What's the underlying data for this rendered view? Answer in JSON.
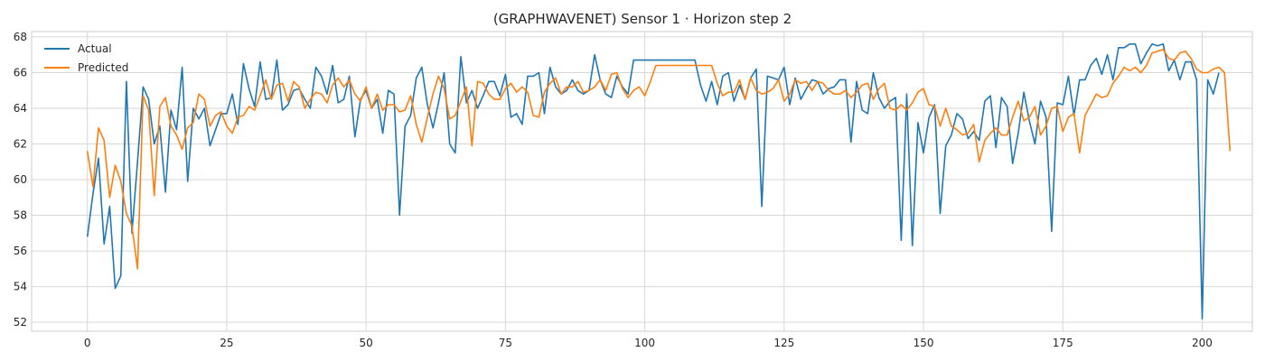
{
  "chart_data": {
    "type": "line",
    "title": "(GRAPHWAVENET) Sensor 1 · Horizon step 2",
    "xlabel": "",
    "ylabel": "",
    "xlim": [
      -10,
      209
    ],
    "ylim": [
      51.5,
      68.3
    ],
    "x_ticks": [
      0,
      25,
      50,
      75,
      100,
      125,
      150,
      175,
      200
    ],
    "y_ticks": [
      52,
      54,
      56,
      58,
      60,
      62,
      64,
      66,
      68
    ],
    "grid": true,
    "legend_position": "top-left",
    "series": [
      {
        "name": "Actual",
        "color": "#1f77b4",
        "values": [
          56.8,
          59.2,
          61.2,
          56.4,
          58.5,
          53.9,
          54.6,
          65.5,
          57.0,
          61.0,
          65.2,
          64.5,
          62.0,
          63.0,
          59.3,
          63.9,
          62.8,
          66.3,
          59.9,
          64.0,
          63.4,
          64.0,
          61.9,
          62.8,
          63.7,
          63.7,
          64.8,
          63.1,
          66.5,
          65.1,
          64.1,
          66.6,
          64.5,
          64.6,
          66.7,
          63.9,
          64.2,
          65.0,
          65.1,
          64.5,
          64.0,
          66.3,
          65.8,
          64.8,
          66.4,
          64.3,
          64.5,
          65.8,
          62.4,
          64.5,
          65.0,
          64.0,
          64.5,
          62.6,
          65.0,
          64.8,
          58.0,
          63.0,
          63.6,
          65.7,
          66.3,
          64.2,
          62.9,
          64.3,
          66.0,
          62.0,
          61.5,
          66.9,
          64.3,
          65.0,
          64.0,
          64.7,
          65.5,
          65.5,
          64.7,
          65.9,
          63.5,
          63.7,
          63.1,
          65.8,
          65.8,
          66.0,
          63.7,
          66.3,
          65.2,
          64.8,
          65.0,
          65.6,
          65.0,
          64.8,
          65.0,
          67.0,
          65.6,
          64.8,
          64.6,
          65.8,
          65.2,
          64.8,
          66.7,
          66.7,
          66.7,
          66.7,
          66.7,
          66.7,
          66.7,
          66.7,
          66.7,
          66.7,
          66.7,
          66.7,
          65.3,
          64.4,
          65.5,
          64.2,
          65.8,
          66.0,
          64.4,
          65.3,
          64.5,
          65.7,
          66.2,
          58.5,
          65.8,
          65.7,
          65.6,
          66.3,
          64.2,
          65.7,
          64.5,
          65.1,
          65.6,
          65.5,
          64.8,
          65.1,
          65.2,
          65.6,
          65.6,
          62.1,
          65.5,
          63.9,
          63.7,
          66.0,
          64.6,
          64.0,
          64.4,
          64.6,
          56.6,
          64.8,
          56.3,
          63.2,
          61.5,
          63.5,
          64.2,
          58.1,
          61.9,
          62.5,
          63.7,
          63.4,
          62.3,
          62.7,
          62.2,
          64.4,
          64.7,
          61.8,
          64.6,
          64.1,
          60.9,
          62.6,
          64.9,
          63.3,
          62.0,
          64.4,
          63.5,
          57.1,
          64.3,
          64.2,
          65.8,
          63.6,
          65.6,
          65.6,
          66.4,
          66.8,
          65.9,
          67.0,
          65.6,
          67.4,
          67.4,
          67.6,
          67.6,
          66.5,
          67.1,
          67.6,
          67.5,
          67.6,
          66.1,
          66.7,
          65.6,
          66.6,
          66.6,
          65.6,
          52.2,
          65.6,
          64.8,
          66.0
        ]
      },
      {
        "name": "Predicted",
        "color": "#ff7f0e",
        "values": [
          61.6,
          59.6,
          62.9,
          62.2,
          59.0,
          60.8,
          59.9,
          58.1,
          57.4,
          55.0,
          64.7,
          63.9,
          59.1,
          64.1,
          64.6,
          63.0,
          62.5,
          61.7,
          62.9,
          63.2,
          64.8,
          64.5,
          63.0,
          63.6,
          63.8,
          63.0,
          62.6,
          63.5,
          63.6,
          64.1,
          63.9,
          64.7,
          65.6,
          64.5,
          65.3,
          65.4,
          64.4,
          65.5,
          65.2,
          64.0,
          64.5,
          64.9,
          64.8,
          64.3,
          65.3,
          65.7,
          65.2,
          65.6,
          64.8,
          64.4,
          65.2,
          64.0,
          64.8,
          63.9,
          64.2,
          64.2,
          63.8,
          63.9,
          64.7,
          63.1,
          62.1,
          63.5,
          64.8,
          65.8,
          65.1,
          63.4,
          63.6,
          64.4,
          65.2,
          61.9,
          65.5,
          65.4,
          64.8,
          64.5,
          64.5,
          65.1,
          65.4,
          64.9,
          65.2,
          64.9,
          63.6,
          63.5,
          64.9,
          65.4,
          65.7,
          64.8,
          65.2,
          65.2,
          65.5,
          64.9,
          65.0,
          65.2,
          65.6,
          65.0,
          65.9,
          66.0,
          65.1,
          64.6,
          65.0,
          65.2,
          64.7,
          65.5,
          66.4,
          66.4,
          66.4,
          66.4,
          66.4,
          66.4,
          66.4,
          66.4,
          66.4,
          66.4,
          66.4,
          65.4,
          64.7,
          64.9,
          64.9,
          65.6,
          64.5,
          65.7,
          65.0,
          64.8,
          64.9,
          65.1,
          65.6,
          64.4,
          64.8,
          65.6,
          65.4,
          65.5,
          65.0,
          65.5,
          65.4,
          65.0,
          64.8,
          64.8,
          65.0,
          64.6,
          64.9,
          65.3,
          65.4,
          64.5,
          65.1,
          65.4,
          64.0,
          63.9,
          64.2,
          63.9,
          64.3,
          64.9,
          65.1,
          64.2,
          64.1,
          63.0,
          64.0,
          63.0,
          62.8,
          62.5,
          62.6,
          63.1,
          61.0,
          62.2,
          62.6,
          62.9,
          62.5,
          62.5,
          63.5,
          64.4,
          63.3,
          63.5,
          64.1,
          62.5,
          63.0,
          64.0,
          64.1,
          62.7,
          63.5,
          63.7,
          61.5,
          63.6,
          64.2,
          64.8,
          64.6,
          64.7,
          65.4,
          65.8,
          66.3,
          66.1,
          66.3,
          66.0,
          66.4,
          67.1,
          67.2,
          67.3,
          66.8,
          66.7,
          67.1,
          67.2,
          66.8,
          66.2,
          66.0,
          66.0,
          66.2,
          66.3,
          66.0,
          61.6
        ]
      }
    ]
  }
}
